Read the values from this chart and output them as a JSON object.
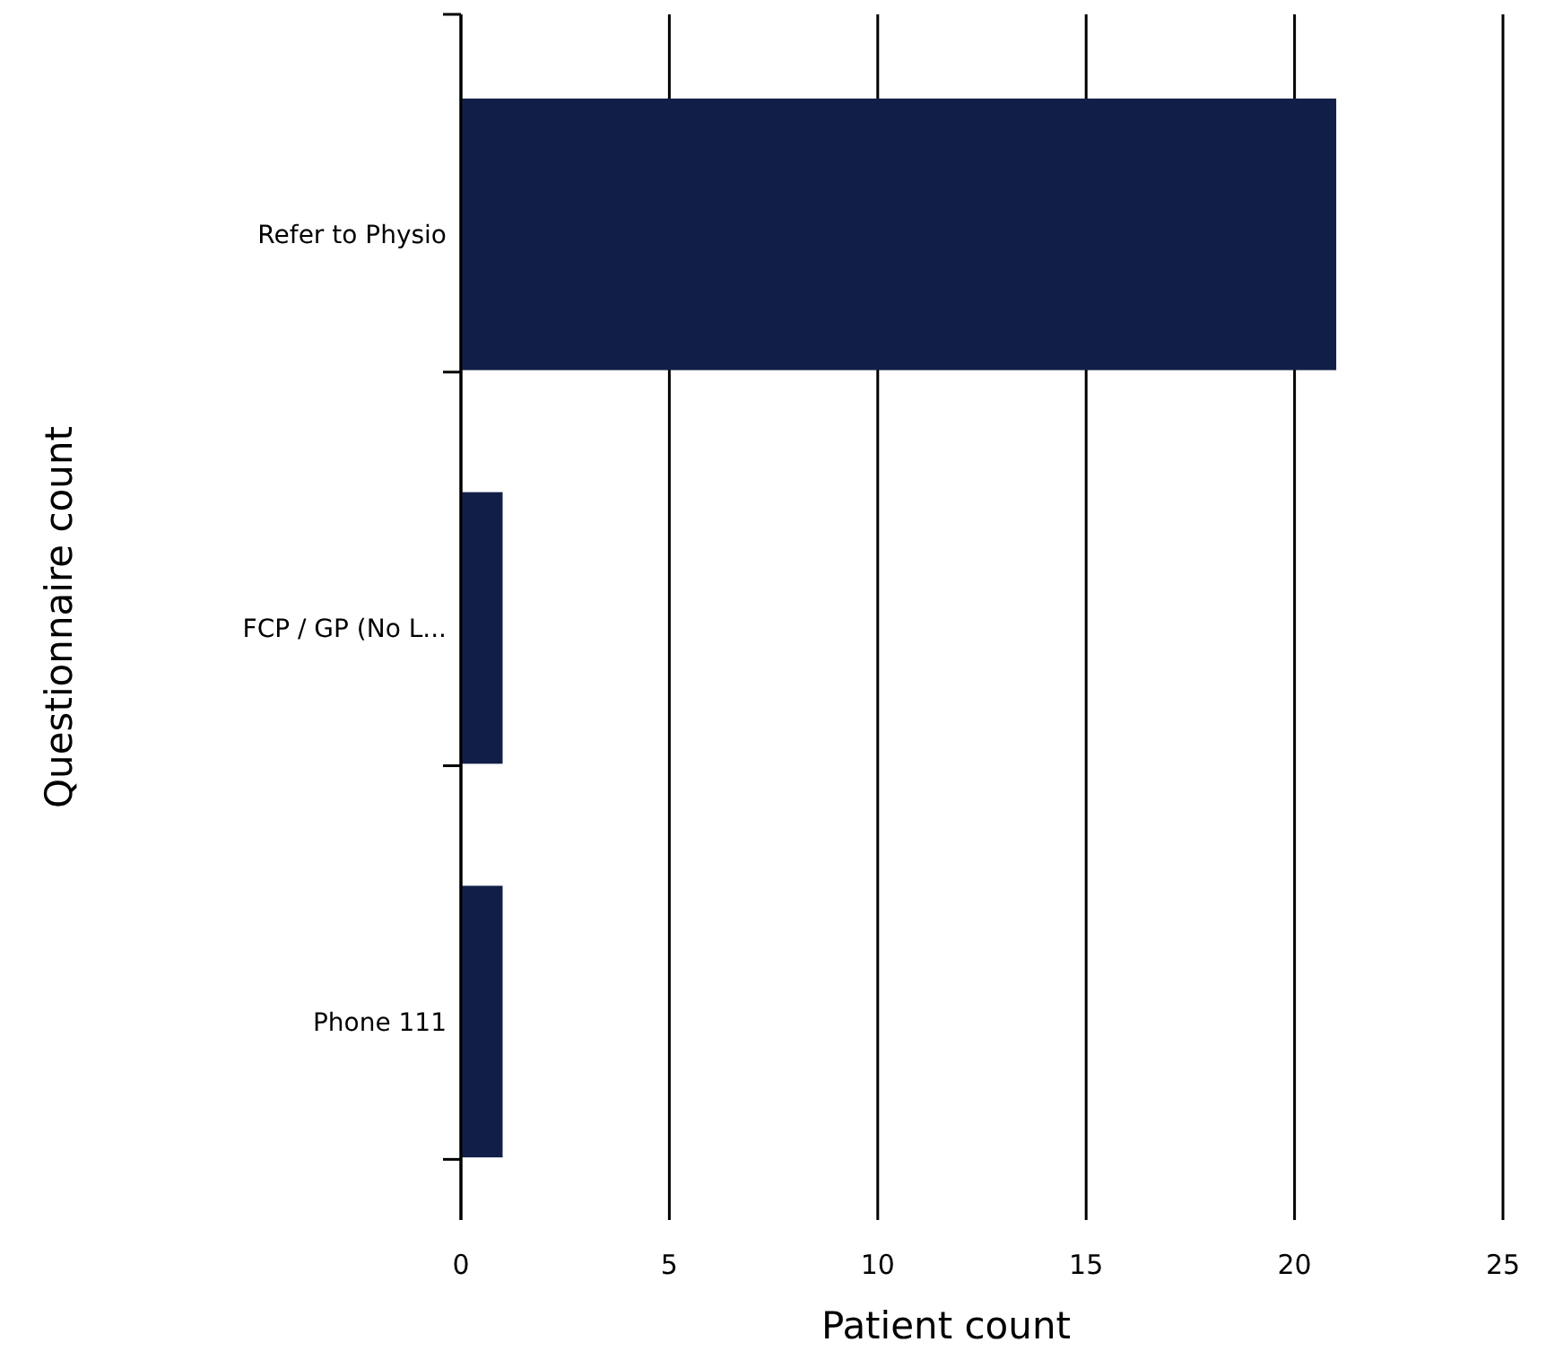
{
  "chart_data": {
    "type": "bar",
    "orientation": "horizontal",
    "xlabel": "Patient count",
    "ylabel": "Questionnaire count",
    "categories": [
      "Refer to Physio",
      "FCP / GP (No L...",
      "Phone 111"
    ],
    "values": [
      21,
      1,
      1
    ],
    "color": "#111f48",
    "xlim": [
      0,
      25
    ],
    "xticks": [
      0,
      5,
      10,
      15,
      20,
      25
    ],
    "grid": "x"
  }
}
